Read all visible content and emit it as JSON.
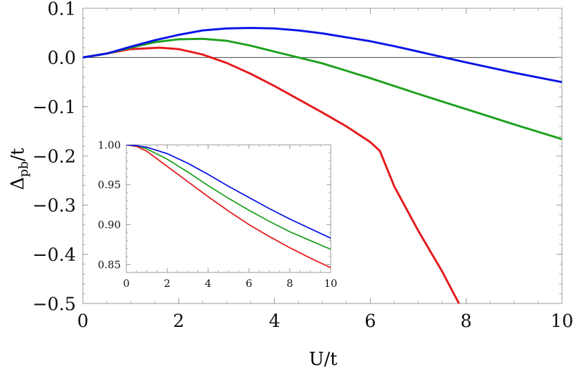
{
  "chart_data": [
    {
      "type": "line",
      "title": "",
      "xlabel": "U/t",
      "ylabel_main": "Δ",
      "ylabel_sub": "pb",
      "ylabel_tail": "/t",
      "xlim": [
        0,
        10
      ],
      "ylim": [
        -0.5,
        0.1
      ],
      "xticks": [
        0,
        2,
        4,
        6,
        8,
        10
      ],
      "xtick_labels": [
        "0",
        "2",
        "4",
        "6",
        "8",
        "10"
      ],
      "yticks": [
        0.1,
        0.0,
        -0.1,
        -0.2,
        -0.3,
        -0.4,
        -0.5
      ],
      "ytick_labels": [
        "0.1",
        "0.0",
        "−0.1",
        "−0.2",
        "−0.3",
        "−0.4",
        "−0.5"
      ],
      "zero_line": true,
      "grid": false,
      "series": [
        {
          "color": "#e41a1c",
          "x": [
            0,
            0.5,
            1.0,
            1.6,
            2.0,
            2.5,
            3.0,
            3.5,
            4.0,
            4.5,
            5.0,
            5.5,
            6.0,
            6.2,
            6.5,
            7.0,
            7.5,
            7.85
          ],
          "y": [
            0,
            0.008,
            0.017,
            0.02,
            0.017,
            0.006,
            -0.011,
            -0.033,
            -0.058,
            -0.085,
            -0.112,
            -0.14,
            -0.172,
            -0.19,
            -0.262,
            -0.352,
            -0.435,
            -0.5
          ]
        },
        {
          "color": "#1ea01e",
          "x": [
            0,
            0.5,
            1.0,
            1.5,
            2.0,
            2.5,
            3.0,
            3.5,
            4.0,
            4.5,
            5.0,
            6.0,
            7.0,
            8.0,
            9.0,
            10.0
          ],
          "y": [
            0,
            0.008,
            0.02,
            0.031,
            0.037,
            0.038,
            0.034,
            0.024,
            0.012,
            0.0,
            -0.012,
            -0.042,
            -0.074,
            -0.105,
            -0.136,
            -0.166
          ]
        },
        {
          "color": "#0a14e6",
          "x": [
            0,
            0.5,
            1.0,
            1.5,
            2.0,
            2.5,
            3.0,
            3.5,
            4.0,
            4.5,
            5.0,
            5.5,
            6.0,
            6.5,
            7.0,
            7.5,
            8.0,
            9.0,
            10.0
          ],
          "y": [
            0,
            0.008,
            0.022,
            0.035,
            0.046,
            0.055,
            0.059,
            0.06,
            0.059,
            0.055,
            0.049,
            0.041,
            0.033,
            0.023,
            0.012,
            0.001,
            -0.01,
            -0.031,
            -0.05
          ]
        }
      ]
    },
    {
      "type": "line",
      "title": "",
      "xlabel": "",
      "ylabel": "",
      "xlim": [
        0,
        10
      ],
      "ylim": [
        0.84,
        1.0
      ],
      "xticks": [
        0,
        2,
        4,
        6,
        8,
        10
      ],
      "xtick_labels": [
        "0",
        "2",
        "4",
        "6",
        "8",
        "10"
      ],
      "yticks": [
        1.0,
        0.95,
        0.9,
        0.85
      ],
      "ytick_labels": [
        "1.00",
        "0.95",
        "0.90",
        "0.85"
      ],
      "grid": false,
      "series": [
        {
          "color": "#e41a1c",
          "x": [
            0,
            0.5,
            1.0,
            2.0,
            3.0,
            4.0,
            5.0,
            6.0,
            7.0,
            8.0,
            9.0,
            10.0
          ],
          "y": [
            1.0,
            0.998,
            0.992,
            0.973,
            0.954,
            0.935,
            0.917,
            0.9,
            0.885,
            0.871,
            0.858,
            0.846
          ]
        },
        {
          "color": "#1ea01e",
          "x": [
            0,
            0.5,
            1.0,
            2.0,
            3.0,
            4.0,
            5.0,
            6.0,
            7.0,
            8.0,
            9.0,
            10.0
          ],
          "y": [
            1.0,
            0.999,
            0.995,
            0.982,
            0.966,
            0.949,
            0.933,
            0.918,
            0.904,
            0.891,
            0.88,
            0.869
          ]
        },
        {
          "color": "#0a14e6",
          "x": [
            0,
            0.5,
            1.0,
            2.0,
            3.0,
            4.0,
            5.0,
            6.0,
            7.0,
            8.0,
            9.0,
            10.0
          ],
          "y": [
            1.0,
            0.999,
            0.997,
            0.989,
            0.977,
            0.963,
            0.948,
            0.934,
            0.92,
            0.907,
            0.895,
            0.883
          ]
        }
      ]
    }
  ]
}
